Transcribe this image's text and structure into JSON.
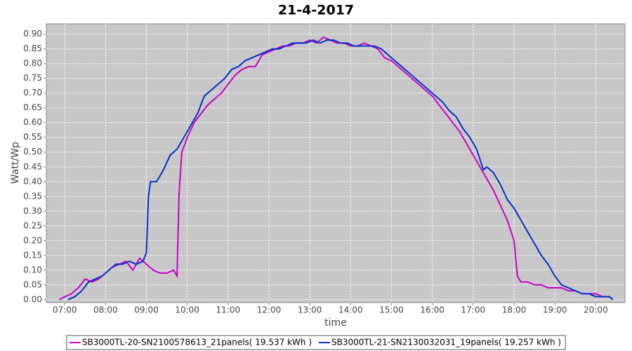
{
  "chart_data": {
    "type": "line",
    "title": "21-4-2017",
    "x_label": "time",
    "y_label": "Watt/Wp",
    "xlim": [
      "06:33",
      "20:43"
    ],
    "ylim": [
      -0.01,
      0.935
    ],
    "xticks": [
      "07:00",
      "08:00",
      "09:00",
      "10:00",
      "11:00",
      "12:00",
      "13:00",
      "14:00",
      "15:00",
      "16:00",
      "17:00",
      "18:00",
      "19:00",
      "20:00"
    ],
    "yticks": [
      {
        "value": 0,
        "label": "0.00"
      },
      {
        "value": 0.05,
        "label": "0.05"
      },
      {
        "value": 0.1,
        "label": "0.10"
      },
      {
        "value": 0.15,
        "label": "0.15"
      },
      {
        "value": 0.2,
        "label": "0.20"
      },
      {
        "value": 0.25,
        "label": "0.25"
      },
      {
        "value": 0.3,
        "label": "0.30"
      },
      {
        "value": 0.35,
        "label": "0.35"
      },
      {
        "value": 0.4,
        "label": "0.40"
      },
      {
        "value": 0.45,
        "label": "0.45"
      },
      {
        "value": 0.5,
        "label": "0.50"
      },
      {
        "value": 0.55,
        "label": "0.55"
      },
      {
        "value": 0.6,
        "label": "0.60"
      },
      {
        "value": 0.65,
        "label": "0.65"
      },
      {
        "value": 0.7,
        "label": "0.70"
      },
      {
        "value": 0.75,
        "label": "0.75"
      },
      {
        "value": 0.8,
        "label": "0.80"
      },
      {
        "value": 0.85,
        "label": "0.85"
      },
      {
        "value": 0.9,
        "label": "0.90"
      }
    ],
    "grid": true,
    "background": "#c8c8c8",
    "legend": "bottom",
    "series": [
      {
        "name": "SB3000TL-20-SN2100578613_21panels( 19.537 kWh )",
        "color": "#cc00cc",
        "x": [
          "06:52",
          "07:00",
          "07:10",
          "07:20",
          "07:30",
          "07:40",
          "07:50",
          "08:00",
          "08:10",
          "08:20",
          "08:30",
          "08:40",
          "08:50",
          "09:00",
          "09:10",
          "09:20",
          "09:30",
          "09:40",
          "09:45",
          "09:48",
          "09:52",
          "10:00",
          "10:10",
          "10:20",
          "10:30",
          "10:40",
          "10:50",
          "11:00",
          "11:10",
          "11:20",
          "11:30",
          "11:40",
          "11:50",
          "12:00",
          "12:10",
          "12:20",
          "12:30",
          "12:40",
          "12:50",
          "13:00",
          "13:10",
          "13:20",
          "13:30",
          "13:40",
          "13:50",
          "14:00",
          "14:10",
          "14:20",
          "14:30",
          "14:40",
          "14:50",
          "15:00",
          "15:10",
          "15:20",
          "15:30",
          "15:40",
          "15:50",
          "16:00",
          "16:10",
          "16:20",
          "16:30",
          "16:40",
          "16:50",
          "17:00",
          "17:10",
          "17:20",
          "17:30",
          "17:40",
          "17:50",
          "18:00",
          "18:05",
          "18:10",
          "18:20",
          "18:30",
          "18:40",
          "18:50",
          "19:00",
          "19:10",
          "19:20",
          "19:30",
          "19:40",
          "19:50",
          "20:00",
          "20:10",
          "20:20",
          "20:25"
        ],
        "values": [
          0,
          0.01,
          0.02,
          0.04,
          0.07,
          0.06,
          0.07,
          0.09,
          0.11,
          0.12,
          0.13,
          0.1,
          0.14,
          0.12,
          0.1,
          0.09,
          0.09,
          0.1,
          0.08,
          0.36,
          0.5,
          0.55,
          0.6,
          0.63,
          0.66,
          0.68,
          0.7,
          0.73,
          0.76,
          0.78,
          0.79,
          0.79,
          0.83,
          0.84,
          0.85,
          0.86,
          0.86,
          0.87,
          0.87,
          0.88,
          0.87,
          0.89,
          0.88,
          0.87,
          0.87,
          0.86,
          0.86,
          0.87,
          0.86,
          0.85,
          0.82,
          0.81,
          0.79,
          0.77,
          0.75,
          0.73,
          0.71,
          0.69,
          0.66,
          0.63,
          0.6,
          0.57,
          0.53,
          0.49,
          0.45,
          0.41,
          0.37,
          0.32,
          0.27,
          0.2,
          0.08,
          0.06,
          0.06,
          0.05,
          0.05,
          0.04,
          0.04,
          0.04,
          0.03,
          0.03,
          0.02,
          0.02,
          0.02,
          0.01,
          0.01,
          0
        ]
      },
      {
        "name": "SB3000TL-21-SN2130032031_19panels( 19.257 kWh )",
        "color": "#0033cc",
        "x": [
          "07:05",
          "07:15",
          "07:25",
          "07:35",
          "07:45",
          "07:55",
          "08:05",
          "08:15",
          "08:25",
          "08:35",
          "08:45",
          "08:55",
          "09:00",
          "09:03",
          "09:06",
          "09:15",
          "09:25",
          "09:35",
          "09:45",
          "09:55",
          "10:05",
          "10:15",
          "10:25",
          "10:35",
          "10:45",
          "10:55",
          "11:05",
          "11:15",
          "11:25",
          "11:35",
          "11:45",
          "11:55",
          "12:05",
          "12:15",
          "12:25",
          "12:35",
          "12:45",
          "12:55",
          "13:05",
          "13:15",
          "13:25",
          "13:35",
          "13:45",
          "13:55",
          "14:05",
          "14:15",
          "14:25",
          "14:35",
          "14:45",
          "14:55",
          "15:05",
          "15:15",
          "15:25",
          "15:35",
          "15:45",
          "15:55",
          "16:05",
          "16:15",
          "16:25",
          "16:35",
          "16:45",
          "16:55",
          "17:05",
          "17:15",
          "17:20",
          "17:30",
          "17:40",
          "17:50",
          "18:00",
          "18:10",
          "18:20",
          "18:30",
          "18:40",
          "18:50",
          "19:00",
          "19:10",
          "19:20",
          "19:30",
          "19:40",
          "19:50",
          "20:00",
          "20:10",
          "20:20",
          "20:25"
        ],
        "values": [
          0,
          0.01,
          0.03,
          0.06,
          0.07,
          0.08,
          0.1,
          0.12,
          0.12,
          0.13,
          0.12,
          0.13,
          0.16,
          0.35,
          0.4,
          0.4,
          0.44,
          0.49,
          0.51,
          0.55,
          0.59,
          0.63,
          0.69,
          0.71,
          0.73,
          0.75,
          0.78,
          0.79,
          0.81,
          0.82,
          0.83,
          0.84,
          0.85,
          0.85,
          0.86,
          0.87,
          0.87,
          0.87,
          0.88,
          0.87,
          0.88,
          0.88,
          0.87,
          0.87,
          0.86,
          0.86,
          0.86,
          0.86,
          0.85,
          0.83,
          0.81,
          0.79,
          0.77,
          0.75,
          0.73,
          0.71,
          0.69,
          0.67,
          0.64,
          0.62,
          0.58,
          0.55,
          0.51,
          0.44,
          0.45,
          0.43,
          0.39,
          0.34,
          0.31,
          0.27,
          0.23,
          0.19,
          0.15,
          0.12,
          0.08,
          0.05,
          0.04,
          0.03,
          0.02,
          0.02,
          0.01,
          0.01,
          0.01,
          0
        ]
      }
    ]
  }
}
